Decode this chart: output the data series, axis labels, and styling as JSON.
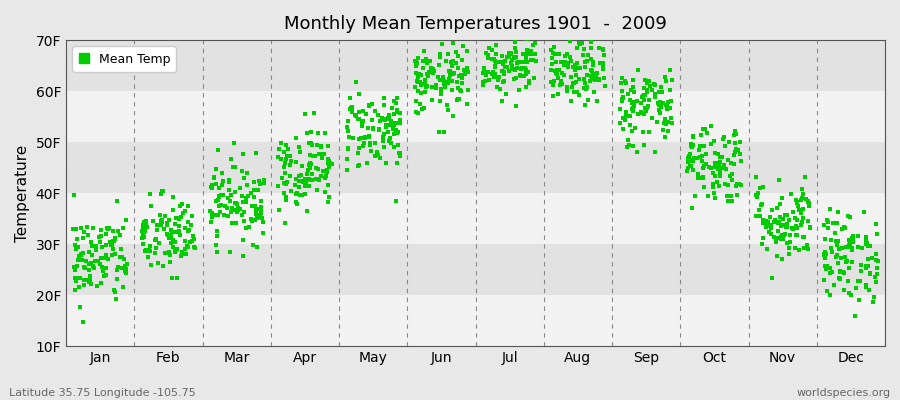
{
  "title": "Monthly Mean Temperatures 1901  -  2009",
  "ylabel": "Temperature",
  "months": [
    "Jan",
    "Feb",
    "Mar",
    "Apr",
    "May",
    "Jun",
    "Jul",
    "Aug",
    "Sep",
    "Oct",
    "Nov",
    "Dec"
  ],
  "mean_temps_F": [
    27.0,
    31.5,
    38.5,
    45.0,
    52.5,
    62.0,
    65.5,
    63.5,
    57.0,
    46.0,
    34.5,
    27.5
  ],
  "temp_spread": [
    4.5,
    4.0,
    4.0,
    4.0,
    4.0,
    3.5,
    3.0,
    3.0,
    4.0,
    4.0,
    4.0,
    4.5
  ],
  "ylim": [
    10,
    70
  ],
  "yticks": [
    10,
    20,
    30,
    40,
    50,
    60,
    70
  ],
  "n_years": 109,
  "marker_color": "#00cc00",
  "marker_size": 3,
  "background_color": "#e8e8e8",
  "band_color_light": "#f2f2f2",
  "band_color_dark": "#e2e2e2",
  "subtitle_left": "Latitude 35.75 Longitude -105.75",
  "subtitle_right": "worldspecies.org"
}
